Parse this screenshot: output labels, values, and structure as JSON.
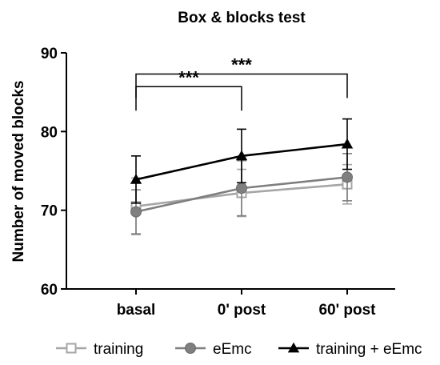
{
  "chart_data": {
    "type": "line",
    "title": "Box & blocks test",
    "xlabel": "",
    "ylabel": "Number of moved blocks",
    "categories": [
      "basal",
      "0' post",
      "60' post"
    ],
    "ylim": [
      60,
      90
    ],
    "yticks": [
      "60",
      "70",
      "80",
      "90"
    ],
    "grid": false,
    "legend_position": "bottom",
    "series": [
      {
        "name": "training",
        "marker": "open-square",
        "color": "#a6a6a6",
        "values": [
          70.5,
          72.2,
          73.3
        ],
        "error": [
          3.6,
          3.0,
          2.5
        ]
      },
      {
        "name": "eEmc",
        "marker": "circle",
        "color": "#7f7f7f",
        "values": [
          69.8,
          72.8,
          74.2
        ],
        "error": [
          2.8,
          3.5,
          3.0
        ]
      },
      {
        "name": "training + eEmc",
        "marker": "triangle",
        "color": "#000000",
        "values": [
          73.9,
          76.9,
          78.4
        ],
        "error": [
          3.0,
          3.4,
          3.2
        ]
      }
    ],
    "annotations": [
      {
        "text": "***",
        "from": 0,
        "to": 1,
        "y": 85.7
      },
      {
        "text": "***",
        "from": 0,
        "to": 2,
        "y": 87.3
      }
    ]
  }
}
